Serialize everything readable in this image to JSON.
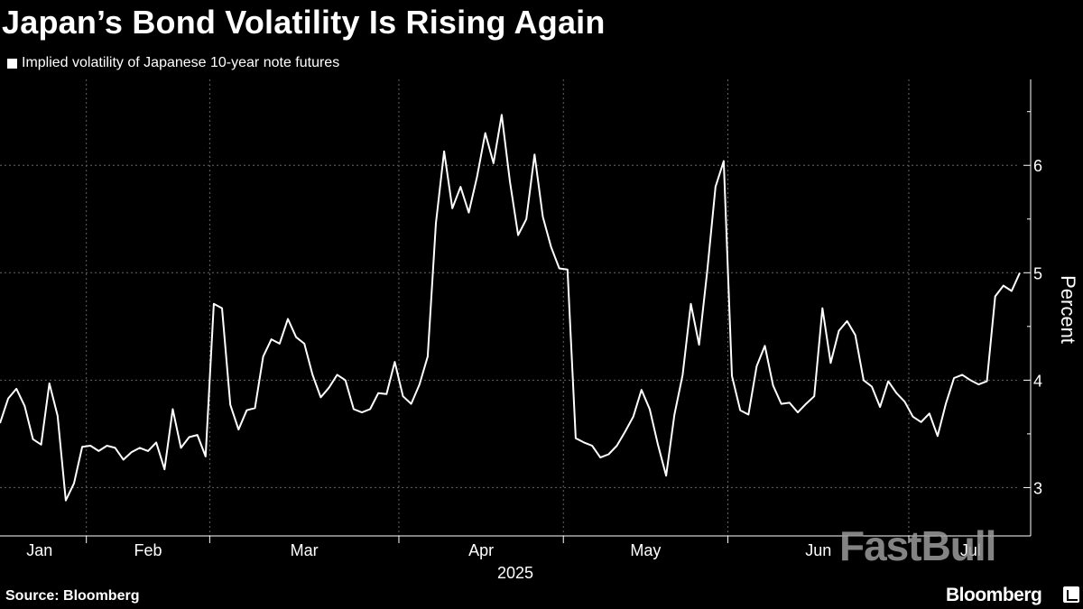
{
  "chart_data": {
    "type": "line",
    "title": "Japan’s Bond Volatility Is Rising Again",
    "legend": [
      {
        "label": "Implied volatility of Japanese 10-year note futures",
        "color": "#ffffff"
      }
    ],
    "ylabel": "Percent",
    "xlabel": "2025",
    "ylim": [
      2.55,
      6.8
    ],
    "yticks": [
      3,
      4,
      5,
      6
    ],
    "month_labels": [
      "Jan",
      "Feb",
      "Mar",
      "Apr",
      "May",
      "Jun",
      "Jul"
    ],
    "series": [
      {
        "name": "Implied volatility of Japanese 10-year note futures",
        "color": "#ffffff",
        "values": [
          3.6,
          3.83,
          3.92,
          3.76,
          3.45,
          3.4,
          3.97,
          3.67,
          2.88,
          3.04,
          3.38,
          3.39,
          3.34,
          3.39,
          3.37,
          3.26,
          3.33,
          3.37,
          3.34,
          3.42,
          3.17,
          3.73,
          3.37,
          3.47,
          3.49,
          3.29,
          4.71,
          4.67,
          3.77,
          3.54,
          3.72,
          3.74,
          4.22,
          4.38,
          4.34,
          4.57,
          4.4,
          4.34,
          4.05,
          3.84,
          3.93,
          4.05,
          4.0,
          3.73,
          3.7,
          3.73,
          3.88,
          3.87,
          4.17,
          3.85,
          3.78,
          3.96,
          4.22,
          5.46,
          6.13,
          5.6,
          5.8,
          5.56,
          5.89,
          6.3,
          6.02,
          6.47,
          5.85,
          5.35,
          5.5,
          6.1,
          5.52,
          5.24,
          5.04,
          5.03,
          3.46,
          3.42,
          3.39,
          3.28,
          3.31,
          3.39,
          3.52,
          3.66,
          3.91,
          3.73,
          3.4,
          3.11,
          3.68,
          4.05,
          4.71,
          4.33,
          5.02,
          5.8,
          6.04,
          4.04,
          3.72,
          3.68,
          4.13,
          4.32,
          3.95,
          3.78,
          3.79,
          3.7,
          3.78,
          3.85,
          4.67,
          4.16,
          4.46,
          4.55,
          4.42,
          4.0,
          3.94,
          3.75,
          3.99,
          3.88,
          3.8,
          3.66,
          3.61,
          3.69,
          3.48,
          3.78,
          4.02,
          4.05,
          4.0,
          3.96,
          3.99,
          4.78,
          4.88,
          4.83,
          5.0
        ]
      }
    ]
  },
  "source": "Source: Bloomberg",
  "watermark": "FastBull",
  "brand": "Bloomberg",
  "colors": {
    "background": "#000000",
    "line": "#ffffff",
    "grid": "#666666",
    "watermark": "#9a9a9a"
  }
}
